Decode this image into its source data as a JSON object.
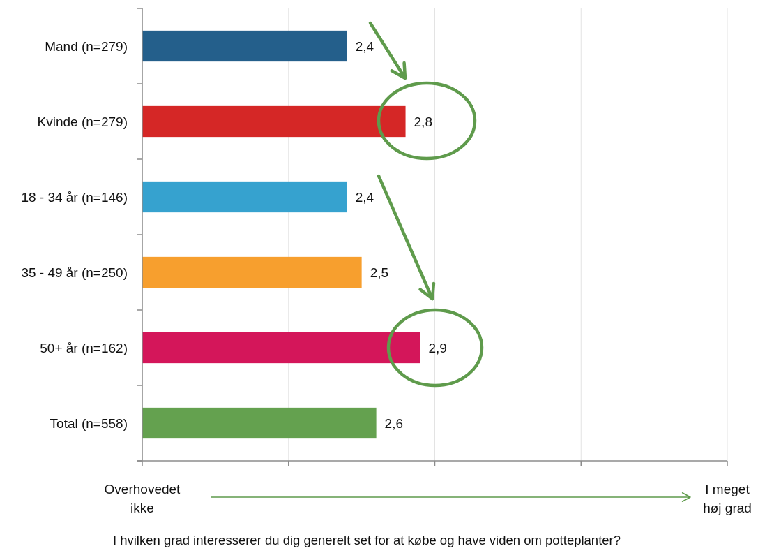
{
  "chart_data": {
    "type": "bar",
    "orientation": "horizontal",
    "categories": [
      "Mand (n=279)",
      "Kvinde (n=279)",
      "18 - 34 år (n=146)",
      "35 - 49 år (n=250)",
      "50+ år (n=162)",
      "Total (n=558)"
    ],
    "values": [
      2.4,
      2.8,
      2.4,
      2.5,
      2.9,
      2.6
    ],
    "colors": [
      "#245f8b",
      "#d52726",
      "#36a2cf",
      "#f79f2e",
      "#d4165a",
      "#64a14f"
    ],
    "value_labels": [
      "2,4",
      "2,8",
      "2,4",
      "2,5",
      "2,9",
      "2,6"
    ],
    "xlim": [
      1,
      5
    ],
    "xticks": [
      {
        "value": 1,
        "label": null
      },
      {
        "value": 2,
        "label": null
      },
      {
        "value": 3,
        "label": null
      },
      {
        "value": 4,
        "label": null
      },
      {
        "value": 5,
        "label": null
      }
    ],
    "tick_labels": "y",
    "annotations": [
      "Overhovedet ikke",
      "I meget høj grad",
      "I hvilken grad interesserer du dig generelt set for at købe og have viden om potteplanter?"
    ],
    "grid": "x"
  }
}
